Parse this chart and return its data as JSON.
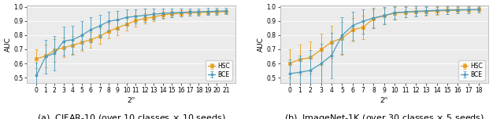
{
  "cifar10": {
    "x": [
      0,
      1,
      2,
      3,
      4,
      5,
      6,
      7,
      8,
      9,
      10,
      11,
      12,
      13,
      14,
      15,
      16,
      17,
      18,
      19,
      20,
      21
    ],
    "bce_mean": [
      0.515,
      0.648,
      0.672,
      0.758,
      0.768,
      0.798,
      0.838,
      0.865,
      0.898,
      0.908,
      0.926,
      0.933,
      0.94,
      0.948,
      0.954,
      0.958,
      0.961,
      0.963,
      0.965,
      0.967,
      0.969,
      0.971
    ],
    "bce_err": [
      0.09,
      0.12,
      0.12,
      0.1,
      0.1,
      0.1,
      0.09,
      0.08,
      0.07,
      0.065,
      0.055,
      0.05,
      0.045,
      0.04,
      0.035,
      0.03,
      0.028,
      0.026,
      0.025,
      0.024,
      0.023,
      0.022
    ],
    "hsc_mean": [
      0.633,
      0.653,
      0.692,
      0.712,
      0.728,
      0.748,
      0.768,
      0.792,
      0.828,
      0.852,
      0.878,
      0.902,
      0.918,
      0.928,
      0.943,
      0.95,
      0.955,
      0.958,
      0.96,
      0.962,
      0.964,
      0.966
    ],
    "hsc_err": [
      0.065,
      0.08,
      0.08,
      0.07,
      0.065,
      0.06,
      0.055,
      0.055,
      0.052,
      0.05,
      0.045,
      0.04,
      0.035,
      0.03,
      0.025,
      0.022,
      0.02,
      0.019,
      0.018,
      0.017,
      0.017,
      0.017
    ],
    "ylabel": "AUC",
    "xlabel": "$2^n$",
    "caption": "(a)  CIFAR-10 (over 10 classes $\\times$ 10 seeds)",
    "ylim": [
      0.46,
      1.01
    ],
    "yticks": [
      0.5,
      0.6,
      0.7,
      0.8,
      0.9,
      1.0
    ],
    "xticks": [
      0,
      1,
      2,
      3,
      4,
      5,
      6,
      7,
      8,
      9,
      10,
      11,
      12,
      13,
      14,
      15,
      16,
      17,
      18,
      19,
      20,
      21
    ]
  },
  "imagenet": {
    "x": [
      0,
      1,
      2,
      3,
      4,
      5,
      6,
      7,
      8,
      9,
      10,
      11,
      12,
      13,
      14,
      15,
      16,
      17,
      18
    ],
    "bce_mean": [
      0.528,
      0.538,
      0.552,
      0.598,
      0.658,
      0.798,
      0.868,
      0.898,
      0.922,
      0.938,
      0.958,
      0.964,
      0.968,
      0.972,
      0.975,
      0.977,
      0.979,
      0.98,
      0.981
    ],
    "bce_err": [
      0.1,
      0.12,
      0.14,
      0.14,
      0.16,
      0.13,
      0.1,
      0.085,
      0.07,
      0.06,
      0.048,
      0.04,
      0.035,
      0.03,
      0.028,
      0.026,
      0.025,
      0.024,
      0.023
    ],
    "hsc_mean": [
      0.602,
      0.628,
      0.642,
      0.698,
      0.752,
      0.778,
      0.838,
      0.855,
      0.918,
      0.938,
      0.956,
      0.961,
      0.965,
      0.968,
      0.971,
      0.974,
      0.976,
      0.978,
      0.98
    ],
    "hsc_err": [
      0.1,
      0.105,
      0.115,
      0.11,
      0.115,
      0.115,
      0.085,
      0.085,
      0.065,
      0.055,
      0.042,
      0.035,
      0.03,
      0.028,
      0.026,
      0.024,
      0.023,
      0.022,
      0.021
    ],
    "ylabel": "AUC",
    "xlabel": "$2^n$",
    "caption": "(b)  ImageNet-1K (over 30 classes $\\times$ 5 seeds)",
    "ylim": [
      0.46,
      1.01
    ],
    "yticks": [
      0.5,
      0.6,
      0.7,
      0.8,
      0.9,
      1.0
    ],
    "xticks": [
      0,
      1,
      2,
      3,
      4,
      5,
      6,
      7,
      8,
      9,
      10,
      11,
      12,
      13,
      14,
      15,
      16,
      17,
      18
    ]
  },
  "bce_color": "#4a9bbe",
  "hsc_color": "#e8a020",
  "bce_label": "BCE",
  "hsc_label": "HSC",
  "plot_bg_color": "#ebebeb",
  "fig_bg_color": "#ffffff",
  "tick_fontsize": 5.5,
  "label_fontsize": 6.5,
  "caption_fontsize": 8.0,
  "legend_fontsize": 5.5,
  "linewidth": 0.9,
  "markersize": 2.2,
  "capsize": 1.5,
  "elinewidth": 0.65,
  "markeredgewidth": 0.5
}
